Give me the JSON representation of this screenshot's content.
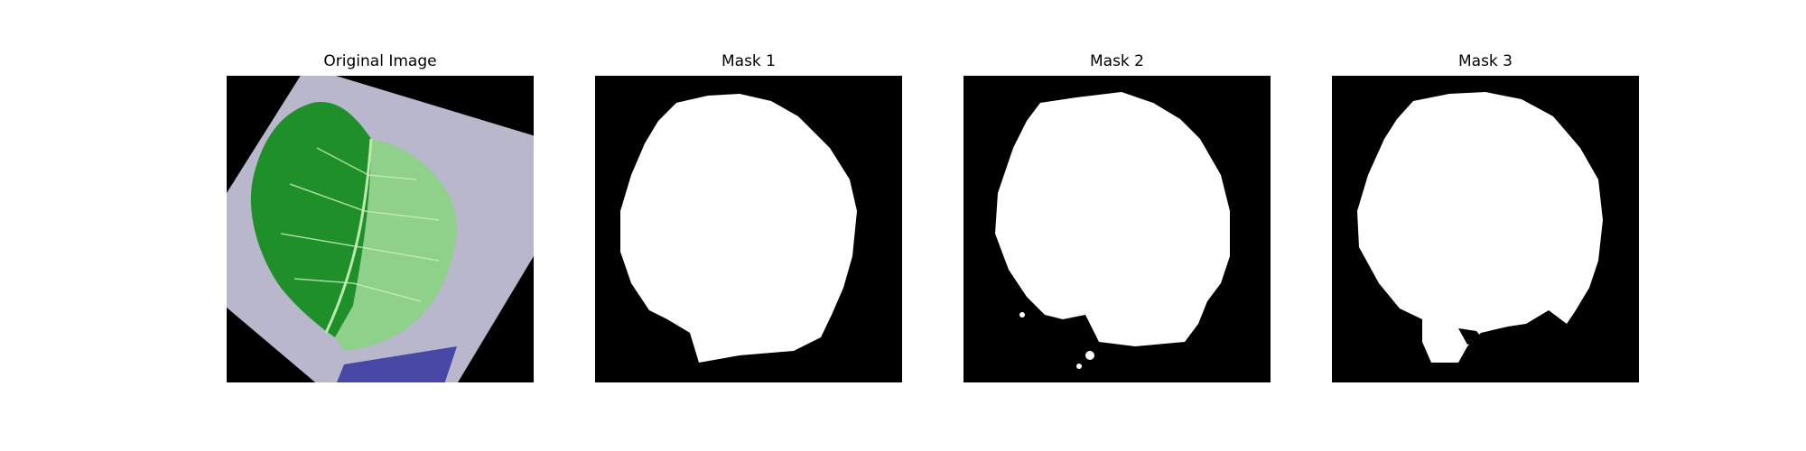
{
  "figure": {
    "panels": [
      {
        "title": "Original Image",
        "kind": "photo"
      },
      {
        "title": "Mask 1",
        "kind": "mask"
      },
      {
        "title": "Mask 2",
        "kind": "mask"
      },
      {
        "title": "Mask 3",
        "kind": "mask"
      }
    ]
  },
  "colors": {
    "background": "#000000",
    "mask": "#ffffff",
    "leaf_dark": "#1f8f2a",
    "leaf_light": "#8fd08a",
    "paper": "#b9b7cc"
  },
  "icons": [
    "leaf-photo",
    "segmentation-mask"
  ]
}
